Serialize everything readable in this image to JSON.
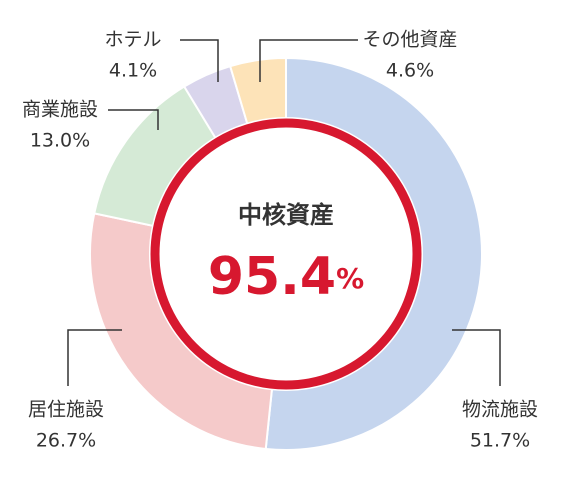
{
  "chart_data": {
    "type": "donut",
    "categories": [
      "物流施設",
      "居住施設",
      "商業施設",
      "ホテル",
      "その他資産"
    ],
    "values": [
      51.7,
      26.7,
      13.0,
      4.1,
      4.6
    ],
    "value_labels": [
      "51.7%",
      "26.7%",
      "13.0%",
      "4.1%",
      "4.6%"
    ],
    "colors": [
      "#c5d5ee",
      "#f5caca",
      "#d5ead6",
      "#d9d5ec",
      "#fde3b8"
    ],
    "center_label": "中核資産",
    "center_value": 95.4,
    "center_unit": "%",
    "center_color": "#d7182f"
  }
}
